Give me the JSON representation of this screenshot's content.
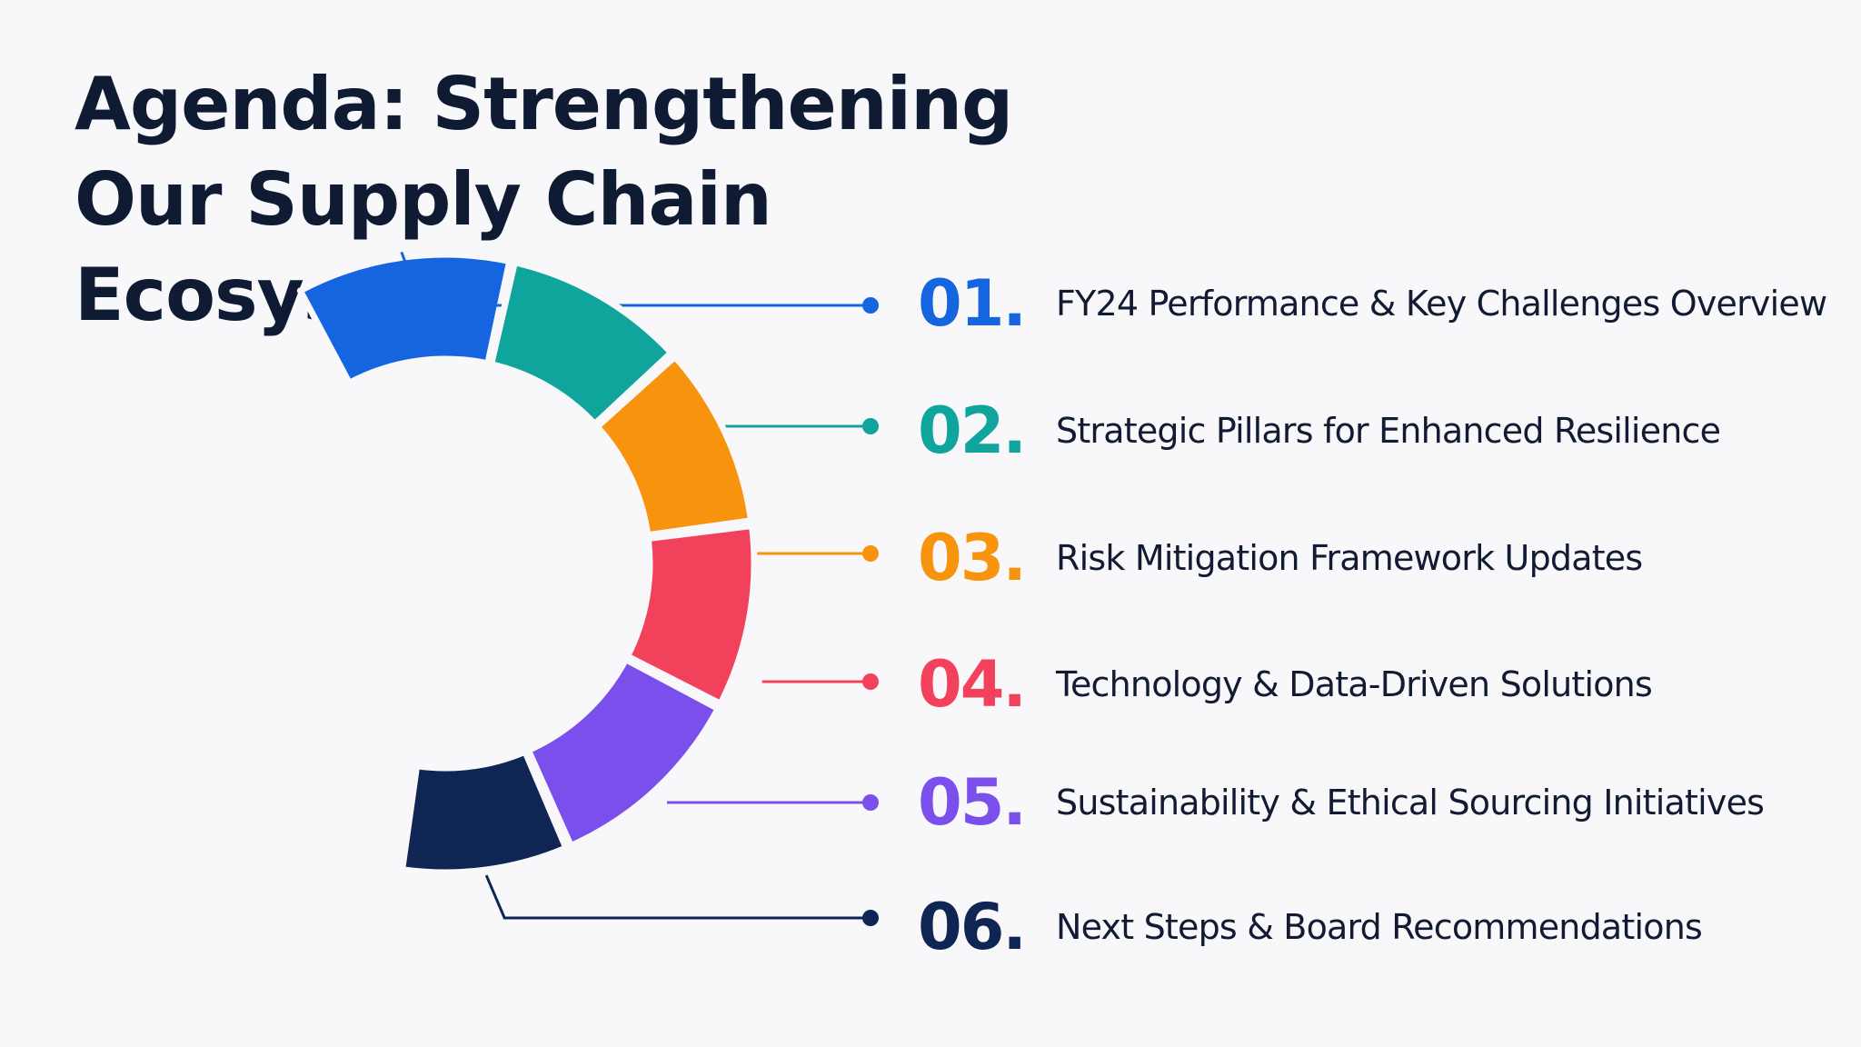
{
  "title": {
    "lines": [
      "Agenda: Strengthening",
      "Our Supply Chain",
      "Ecosystem"
    ]
  },
  "agenda": {
    "items": [
      {
        "number": "01.",
        "label": "FY24 Performance & Key Challenges Overview",
        "color": "#1565e0"
      },
      {
        "number": "02.",
        "label": "Strategic Pillars for Enhanced Resilience",
        "color": "#0fa59c"
      },
      {
        "number": "03.",
        "label": "Risk Mitigation Framework Updates",
        "color": "#f7930c"
      },
      {
        "number": "04.",
        "label": "Technology & Data-Driven Solutions",
        "color": "#f2415a"
      },
      {
        "number": "05.",
        "label": "Sustainability & Ethical Sourcing Initiatives",
        "color": "#7b4fec"
      },
      {
        "number": "06.",
        "label": "Next Steps & Board Recommendations",
        "color": "#0f2554"
      }
    ]
  }
}
